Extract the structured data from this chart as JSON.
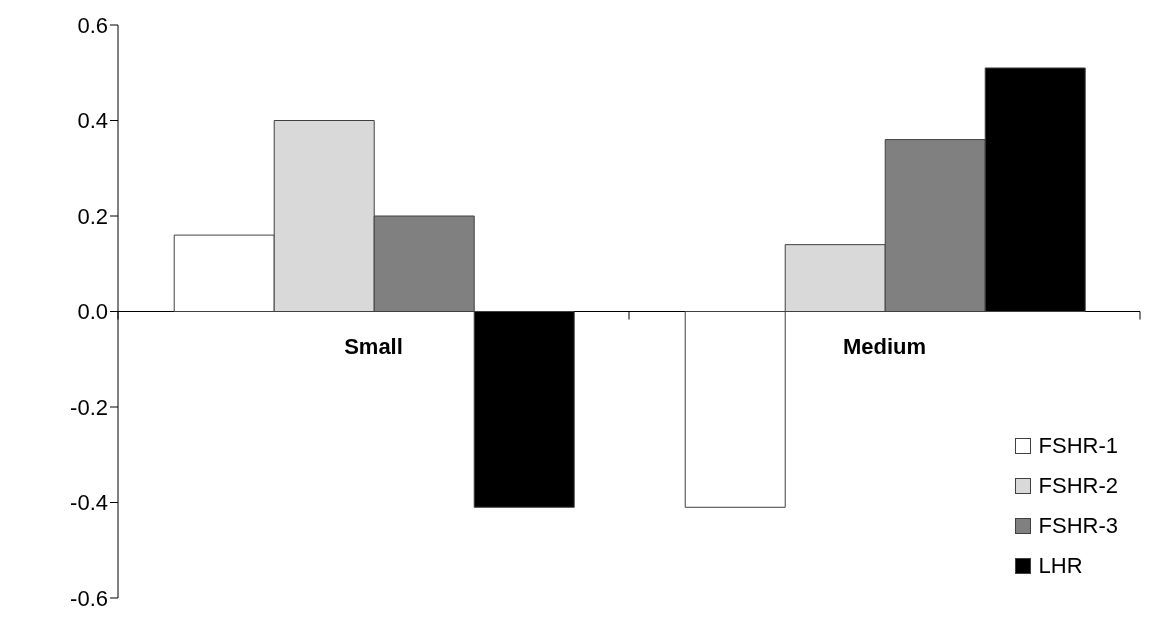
{
  "chart_data": {
    "type": "bar",
    "categories": [
      "Small",
      "Medium"
    ],
    "series": [
      {
        "name": "FSHR-1",
        "color": "#ffffff",
        "values": [
          0.16,
          -0.41
        ]
      },
      {
        "name": "FSHR-2",
        "color": "#d9d9d9",
        "values": [
          0.4,
          0.14
        ]
      },
      {
        "name": "FSHR-3",
        "color": "#808080",
        "values": [
          0.2,
          0.36
        ]
      },
      {
        "name": "LHR",
        "color": "#000000",
        "values": [
          -0.41,
          0.51
        ]
      }
    ],
    "ylim": [
      -0.6,
      0.6
    ],
    "yticks": [
      {
        "value": -0.6,
        "label": "-0.6"
      },
      {
        "value": -0.4,
        "label": "-0.4"
      },
      {
        "value": -0.2,
        "label": "-0.2"
      },
      {
        "value": 0,
        "label": "0.0"
      },
      {
        "value": 0.2,
        "label": "0.2"
      },
      {
        "value": 0.4,
        "label": "0.4"
      },
      {
        "value": 0.6,
        "label": "0.6"
      }
    ],
    "grid": false,
    "legend": "bottom right"
  }
}
